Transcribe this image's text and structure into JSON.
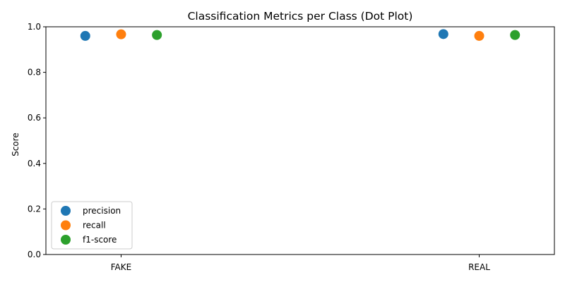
{
  "chart_data": {
    "type": "scatter",
    "title": "Classification Metrics per Class (Dot Plot)",
    "xlabel": "",
    "ylabel": "Score",
    "categories": [
      "FAKE",
      "REAL"
    ],
    "ylim": [
      0,
      1
    ],
    "yticks": [
      "0.0",
      "0.2",
      "0.4",
      "0.6",
      "0.8",
      "1.0"
    ],
    "grid": false,
    "legend_position": "lower-left",
    "series": [
      {
        "name": "precision",
        "color": "#1f77b4",
        "values": [
          0.96,
          0.968
        ]
      },
      {
        "name": "recall",
        "color": "#ff7f0e",
        "values": [
          0.967,
          0.96
        ]
      },
      {
        "name": "f1-score",
        "color": "#2ca02c",
        "values": [
          0.964,
          0.964
        ]
      }
    ]
  }
}
